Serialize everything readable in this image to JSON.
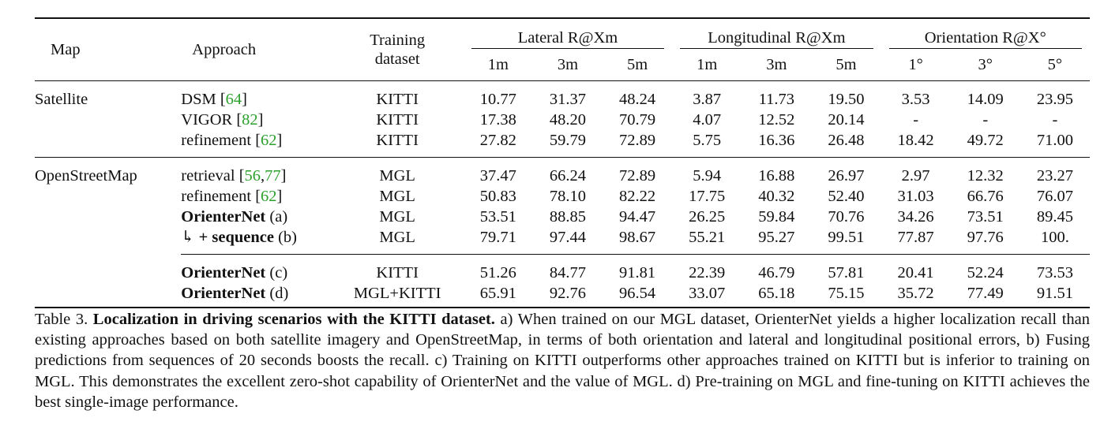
{
  "header": {
    "map": "Map",
    "approach": "Approach",
    "training_line1": "Training",
    "training_line2": "dataset",
    "groups": [
      "Lateral R@Xm",
      "Longitudinal R@Xm",
      "Orientation R@X°"
    ],
    "subs": [
      "1m",
      "3m",
      "5m",
      "1m",
      "3m",
      "5m",
      "1°",
      "3°",
      "5°"
    ]
  },
  "blocks": {
    "satellite": {
      "map": "Satellite",
      "rows": [
        {
          "name": "DSM",
          "cite": "64",
          "train": "KITTI",
          "values": [
            "10.77",
            "31.37",
            "48.24",
            "3.87",
            "11.73",
            "19.50",
            "3.53",
            "14.09",
            "23.95"
          ]
        },
        {
          "name": "VIGOR",
          "cite": "82",
          "train": "KITTI",
          "values": [
            "17.38",
            "48.20",
            "70.79",
            "4.07",
            "12.52",
            "20.14",
            "-",
            "-",
            "-"
          ]
        },
        {
          "name": "refinement",
          "cite": "62",
          "train": "KITTI",
          "values": [
            "27.82",
            "59.79",
            "72.89",
            "5.75",
            "16.36",
            "26.48",
            "18.42",
            "49.72",
            "71.00"
          ]
        }
      ]
    },
    "osm": {
      "map": "OpenStreetMap",
      "rows": [
        {
          "name": "retrieval",
          "cite_a": "56",
          "cite_b": "77",
          "train": "MGL",
          "values": [
            "37.47",
            "66.24",
            "72.89",
            "5.94",
            "16.88",
            "26.97",
            "2.97",
            "12.32",
            "23.27"
          ]
        },
        {
          "name": "refinement",
          "cite": "62",
          "train": "MGL",
          "values": [
            "50.83",
            "78.10",
            "82.22",
            "17.75",
            "40.32",
            "52.40",
            "31.03",
            "66.76",
            "76.07"
          ]
        },
        {
          "name": "OrienterNet",
          "tag": "(a)",
          "train": "MGL",
          "values": [
            "53.51",
            "88.85",
            "94.47",
            "26.25",
            "59.84",
            "70.76",
            "34.26",
            "73.51",
            "89.45"
          ]
        },
        {
          "arrow": "↳",
          "name": "+ sequence",
          "tag": "(b)",
          "train": "MGL",
          "values": [
            "79.71",
            "97.44",
            "98.67",
            "55.21",
            "95.27",
            "99.51",
            "77.87",
            "97.76",
            "100."
          ]
        },
        {
          "name": "OrienterNet",
          "tag": "(c)",
          "train": "KITTI",
          "values": [
            "51.26",
            "84.77",
            "91.81",
            "22.39",
            "46.79",
            "57.81",
            "20.41",
            "52.24",
            "73.53"
          ]
        },
        {
          "name": "OrienterNet",
          "tag": "(d)",
          "train": "MGL+KITTI",
          "values": [
            "65.91",
            "92.76",
            "96.54",
            "33.07",
            "65.18",
            "75.15",
            "35.72",
            "77.49",
            "91.51"
          ]
        }
      ]
    }
  },
  "caption": {
    "label": "Table 3.",
    "lead": "Localization in driving scenarios with the KITTI dataset.",
    "body": "a) When trained on our MGL dataset, OrienterNet yields a higher localization recall than existing approaches based on both satellite imagery and OpenStreetMap, in terms of both orientation and lateral and longitudinal positional errors, b) Fusing predictions from sequences of 20 seconds boosts the recall. c) Training on KITTI outperforms other approaches trained on KITTI but is inferior to training on MGL. This demonstrates the excellent zero-shot capability of OrienterNet and the value of MGL. d) Pre-training on MGL and fine-tuning on KITTI achieves the best single-image performance."
  },
  "colors": {
    "citation": "#2ca02c",
    "text": "#111111"
  }
}
